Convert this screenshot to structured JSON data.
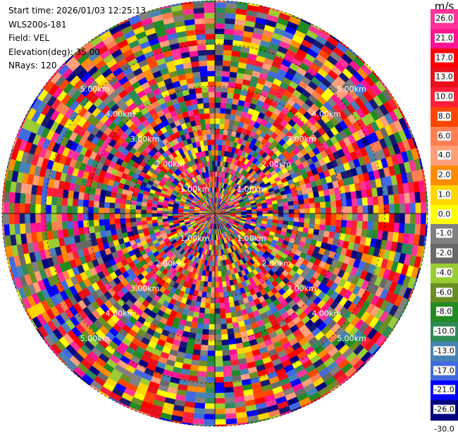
{
  "info": {
    "start_time": "Start time: 2026/01/03 12:25:13",
    "station": "WLS200s-181",
    "field": "Field: VEL",
    "elevation": "Elevation(deg): 35.00",
    "nrays": "NRays: 120"
  },
  "colorbar": {
    "unit": "m/s",
    "ticks": [
      "26.0",
      "21.0",
      "17.0",
      "13.0",
      "10.0",
      "8.0",
      "6.0",
      "4.0",
      "2.0",
      "1.0",
      "0.0",
      "-1.0",
      "-2.0",
      "-4.0",
      "-6.0",
      "-8.0",
      "-10.0",
      "-13.0",
      "-17.0",
      "-21.0",
      "-26.0",
      "-30.0"
    ],
    "colors": [
      "#ff3399",
      "#ff1493",
      "#ff0000",
      "#e8101a",
      "#ff1f3a",
      "#ff4500",
      "#ff7f50",
      "#ffa07a",
      "#ff8c00",
      "#ffd700",
      "#ffff00",
      "#808080",
      "#696969",
      "#9acd32",
      "#6b8e23",
      "#228b22",
      "#2e8b57",
      "#4682b4",
      "#4169e1",
      "#0000ff",
      "#000080",
      "#191970"
    ]
  },
  "range_labels": [
    "1.00km",
    "2.00km",
    "3.00km",
    "4.00km",
    "5.00km"
  ],
  "ppi": {
    "rays": 120
  }
}
